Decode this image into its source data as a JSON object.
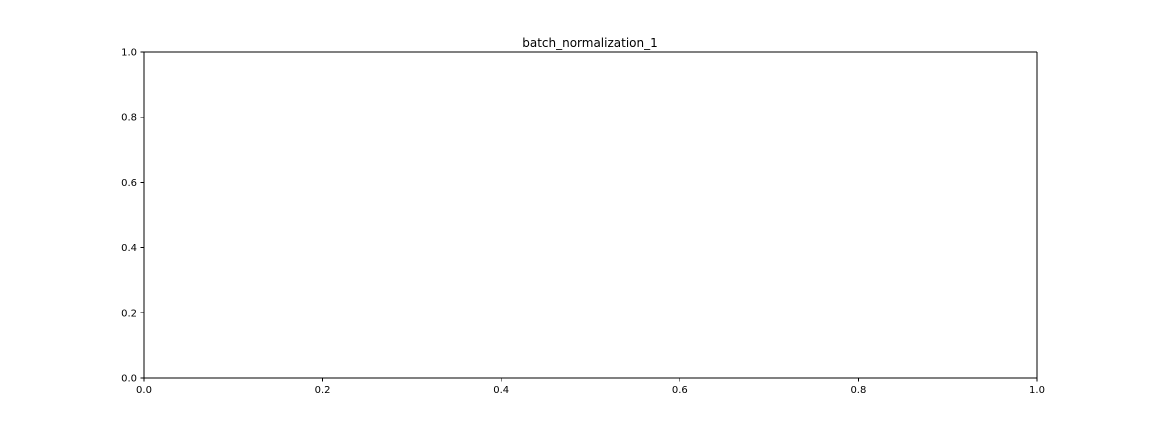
{
  "chart_data": {
    "type": "line",
    "title": "batch_normalization_1",
    "xlabel": "",
    "ylabel": "",
    "xlim": [
      0.0,
      1.0
    ],
    "ylim": [
      0.0,
      1.0
    ],
    "xticks": [
      0.0,
      0.2,
      0.4,
      0.6,
      0.8,
      1.0
    ],
    "yticks": [
      0.0,
      0.2,
      0.4,
      0.6,
      0.8,
      1.0
    ],
    "xtick_labels": [
      "0.0",
      "0.2",
      "0.4",
      "0.6",
      "0.8",
      "1.0"
    ],
    "ytick_labels": [
      "0.0",
      "0.2",
      "0.4",
      "0.6",
      "0.8",
      "1.0"
    ],
    "series": [],
    "grid": false,
    "legend": "none"
  }
}
